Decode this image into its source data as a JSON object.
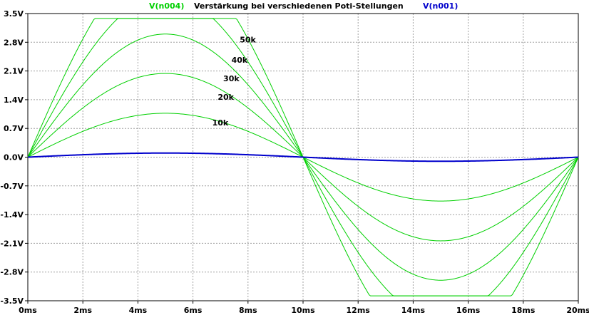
{
  "chart_data": {
    "type": "line",
    "title": "Verstärkung bei verschiedenen Poti-Stellungen",
    "xlabel": "",
    "ylabel": "",
    "x_unit": "ms",
    "y_unit": "V",
    "xlim": [
      0,
      20
    ],
    "ylim": [
      -3.5,
      3.5
    ],
    "x_ticks": [
      "0ms",
      "2ms",
      "4ms",
      "6ms",
      "8ms",
      "10ms",
      "12ms",
      "14ms",
      "16ms",
      "18ms",
      "20ms"
    ],
    "y_ticks": [
      "3.5V",
      "2.8V",
      "2.1V",
      "1.4V",
      "0.7V",
      "0.0V",
      "-0.7V",
      "-1.4V",
      "-2.1V",
      "-2.8V",
      "-3.5V"
    ],
    "grid": true,
    "series": [
      {
        "name": "V(n004)",
        "color": "#00d000",
        "curves": [
          {
            "label": "10k",
            "amplitude": 1.07,
            "clip": null
          },
          {
            "label": "20k",
            "amplitude": 2.04,
            "clip": null
          },
          {
            "label": "30k",
            "amplitude": 3.0,
            "clip": null
          },
          {
            "label": "40k",
            "amplitude": 3.95,
            "clip": 3.38
          },
          {
            "label": "50k",
            "amplitude": 4.9,
            "clip": 3.38
          }
        ]
      },
      {
        "name": "V(n001)",
        "color": "#0000cc",
        "curves": [
          {
            "label": "",
            "amplitude": 0.1,
            "clip": null
          }
        ]
      }
    ],
    "x_samples_ms": [
      0,
      0.5,
      1,
      1.5,
      2,
      2.5,
      3,
      3.5,
      4,
      4.5,
      5,
      5.5,
      6,
      6.5,
      7,
      7.5,
      8,
      8.5,
      9,
      9.5,
      10,
      10.5,
      11,
      11.5,
      12,
      12.5,
      13,
      13.5,
      14,
      14.5,
      15,
      15.5,
      16,
      16.5,
      17,
      17.5,
      18,
      18.5,
      19,
      19.5,
      20
    ],
    "annotations": [
      {
        "text": "50k",
        "x": 7.7,
        "y": 2.8
      },
      {
        "text": "40k",
        "x": 7.4,
        "y": 2.3
      },
      {
        "text": "30k",
        "x": 7.1,
        "y": 1.85
      },
      {
        "text": "20k",
        "x": 6.9,
        "y": 1.4
      },
      {
        "text": "10k",
        "x": 6.7,
        "y": 0.77
      }
    ]
  }
}
